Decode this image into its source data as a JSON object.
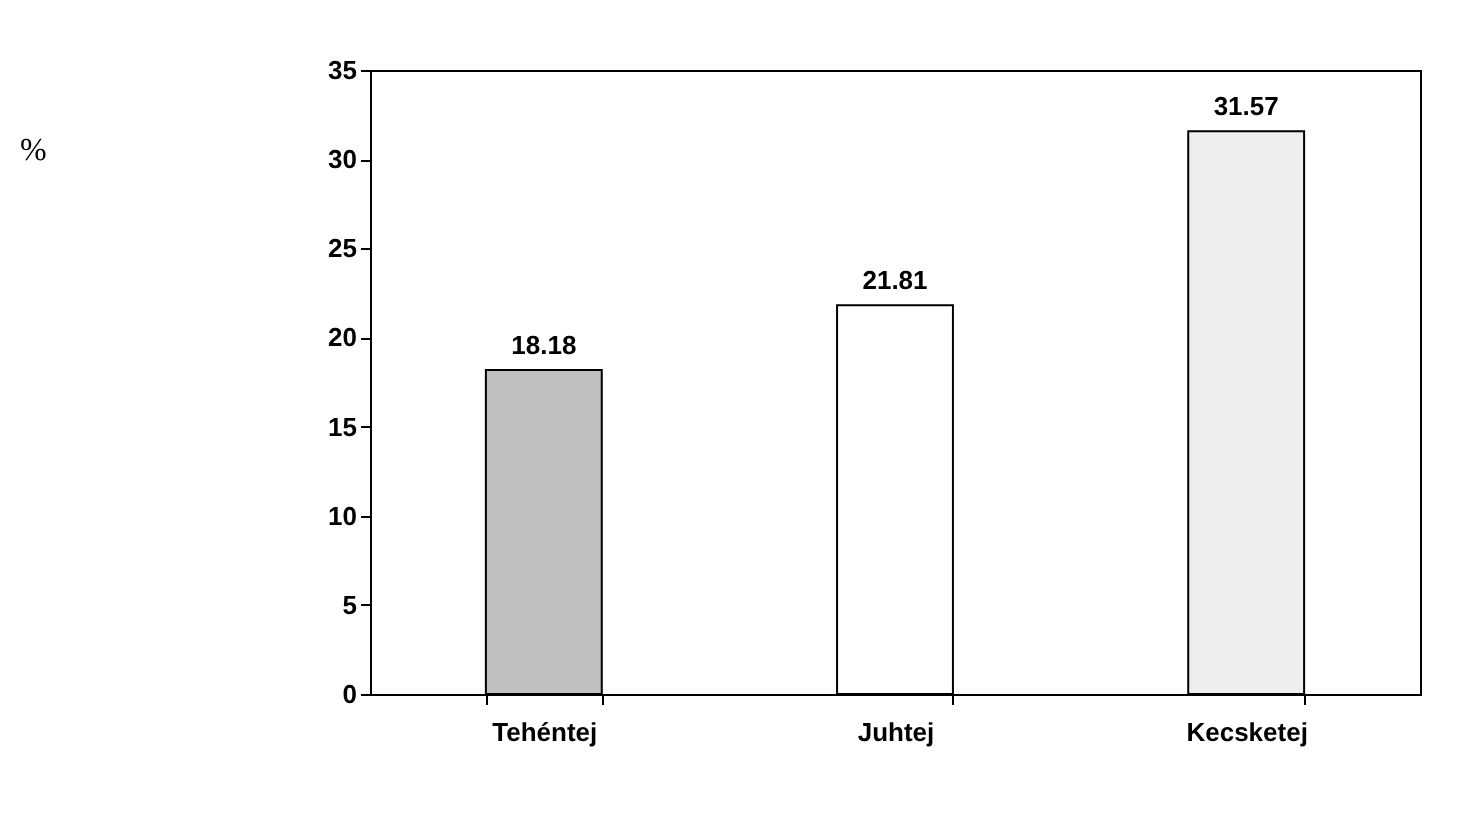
{
  "chart_data": {
    "type": "bar",
    "annotations": [
      "%"
    ],
    "categories": [
      "Tehéntej",
      "Juhtej",
      "Kecsketej"
    ],
    "values": [
      18.18,
      21.81,
      31.57
    ],
    "colors": [
      "#c0c0c0",
      "#ffffff",
      "#eeeeee"
    ],
    "ylim": [
      0,
      35
    ],
    "yticks": [
      0,
      5,
      10,
      15,
      20,
      25,
      30,
      35
    ],
    "grid": false,
    "data_labels": true
  }
}
